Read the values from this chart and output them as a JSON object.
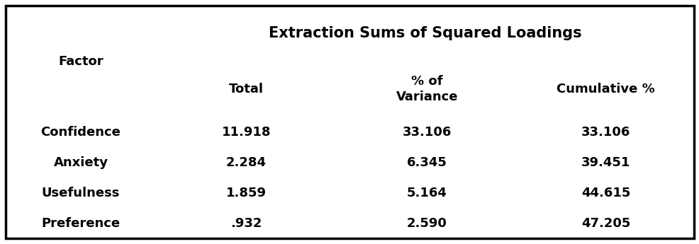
{
  "header_main": "Extraction Sums of Squared Loadings",
  "header_sub": [
    "Total",
    "% of\nVariance",
    "Cumulative %"
  ],
  "col0_header": "Factor",
  "rows": [
    [
      "Confidence",
      "11.918",
      "33.106",
      "33.106"
    ],
    [
      "Anxiety",
      "2.284",
      "6.345",
      "39.451"
    ],
    [
      "Usefulness",
      "1.859",
      "5.164",
      "44.615"
    ],
    [
      "Preference",
      ".932",
      "2.590",
      "47.205"
    ]
  ],
  "bg_color": "#ffffff",
  "border_color": "#000000",
  "text_color": "#000000",
  "font_size_main_header": 15,
  "font_size_sub_header": 13,
  "font_size_data": 13
}
